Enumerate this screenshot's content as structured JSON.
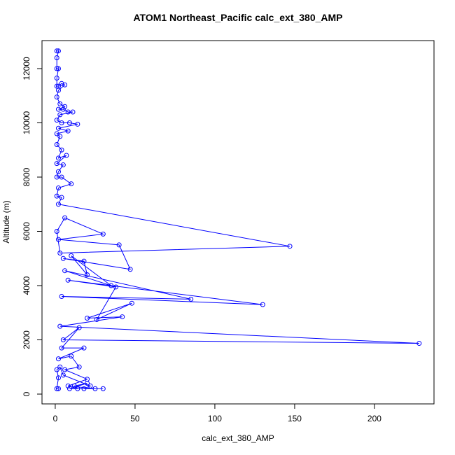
{
  "chart_data": {
    "type": "line",
    "title": "ATOM1 Northeast_Pacific calc_ext_380_AMP",
    "x_label": "calc_ext_380_AMP",
    "y_label": "Altitude (m)",
    "x": [
      1,
      2,
      1,
      1,
      2,
      1,
      1,
      2,
      4,
      6,
      2,
      1,
      3,
      6,
      2,
      5,
      8,
      11,
      3,
      1,
      4,
      9,
      14,
      2,
      8,
      1,
      3,
      1,
      4,
      2,
      7,
      1,
      5,
      2,
      1,
      4,
      10,
      2,
      1,
      4,
      2,
      147,
      3,
      1,
      6,
      30,
      2,
      40,
      47,
      5,
      18,
      20,
      10,
      35,
      6,
      85,
      4,
      130,
      8,
      38,
      26,
      48,
      20,
      42,
      3,
      228,
      5,
      15,
      4,
      18,
      2,
      10,
      15,
      6,
      20,
      8,
      25,
      30,
      14,
      12,
      20,
      9,
      18,
      22,
      5,
      3,
      1,
      2,
      1,
      2
    ],
    "series": [
      {
        "color": "#0000ff",
        "marker": "open-circle",
        "values": [
          12650,
          12650,
          12400,
          12000,
          12000,
          11650,
          11350,
          11350,
          11450,
          11400,
          11200,
          10950,
          10700,
          10600,
          10500,
          10500,
          10400,
          10400,
          10300,
          10100,
          10000,
          10000,
          9950,
          9800,
          9700,
          9600,
          9500,
          9200,
          9000,
          8700,
          8800,
          8500,
          8450,
          8200,
          8000,
          8000,
          7750,
          7600,
          7300,
          7250,
          7000,
          5450,
          5200,
          6000,
          6500,
          5900,
          5700,
          5500,
          4600,
          5000,
          4900,
          4400,
          5100,
          4000,
          4550,
          3500,
          3600,
          3300,
          4200,
          3950,
          2750,
          3350,
          2800,
          2850,
          2500,
          1870,
          2000,
          2450,
          1700,
          1700,
          1300,
          1400,
          1000,
          900,
          550,
          300,
          200,
          200,
          200,
          300,
          400,
          200,
          200,
          300,
          700,
          1000,
          900,
          600,
          200,
          200
        ]
      }
    ],
    "xlim": [
      -8.3,
      237.3
    ],
    "ylim": [
      -361,
      13032
    ],
    "xticks": [
      0,
      50,
      100,
      150,
      200
    ],
    "yticks": [
      0,
      2000,
      4000,
      6000,
      8000,
      10000,
      12000
    ],
    "grid": false
  }
}
